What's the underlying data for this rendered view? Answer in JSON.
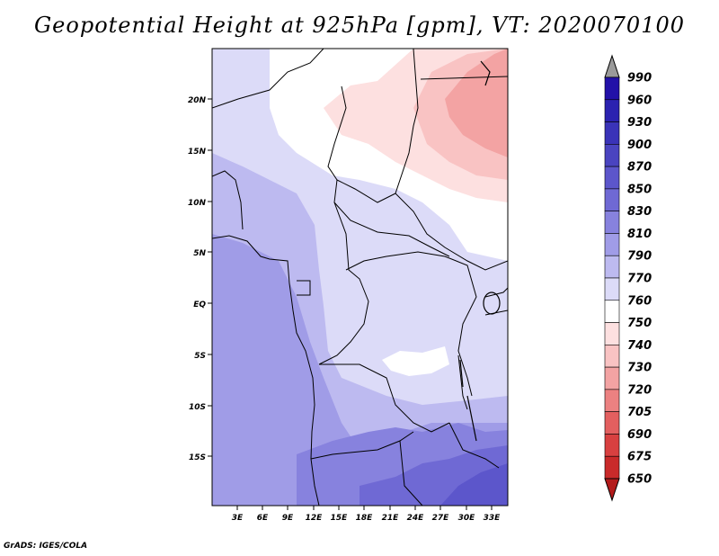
{
  "title": "Geopotential Height at 925hPa [gpm], VT: 2020070100",
  "footer": "GrADS: IGES/COLA",
  "map": {
    "lat_labels": [
      "20N",
      "15N",
      "10N",
      "5N",
      "EQ",
      "5S",
      "10S",
      "15S"
    ],
    "lon_labels": [
      "3E",
      "6E",
      "9E",
      "12E",
      "15E",
      "18E",
      "21E",
      "24E",
      "27E",
      "30E",
      "33E"
    ]
  },
  "colorbar": {
    "levels": [
      "990",
      "960",
      "930",
      "900",
      "870",
      "850",
      "830",
      "810",
      "790",
      "770",
      "760",
      "750",
      "740",
      "730",
      "720",
      "705",
      "690",
      "675",
      "650"
    ],
    "colors": [
      "#2211a8",
      "#2b22b0",
      "#3a33b8",
      "#4a44c0",
      "#5c56cb",
      "#6f69d4",
      "#8782de",
      "#a09ce7",
      "#bdbaf0",
      "#dcdbf8",
      "#ffffff",
      "#fde0e0",
      "#f9c3c3",
      "#f3a3a3",
      "#ec8181",
      "#e35f5f",
      "#d84040",
      "#c92a2a",
      "#b31b1b"
    ]
  }
}
